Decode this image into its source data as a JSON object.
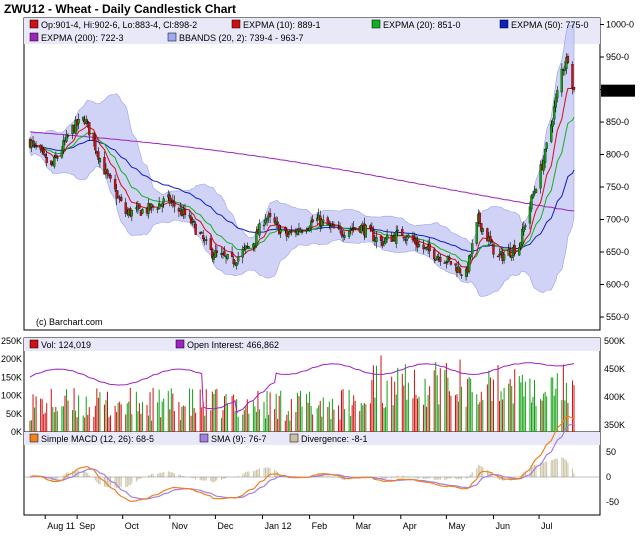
{
  "title": "ZWU12 - Wheat - Daily Candlestick Chart",
  "watermark": "(c) Barchart.com",
  "x_labels": [
    "Aug 11",
    "Sep",
    "Oct",
    "Nov",
    "Dec",
    "Jan 12",
    "Feb",
    "Mar",
    "Apr",
    "May",
    "Jun",
    "Jul"
  ],
  "price_panel": {
    "legend": [
      {
        "label": "Op:901-4, Hi:902-6, Lo:883-4, Cl:898-2",
        "color": "#d01010"
      },
      {
        "label": "EXPMA (10): 889-1",
        "color": "#d01010"
      },
      {
        "label": "EXPMA (20): 851-0",
        "color": "#10b020"
      },
      {
        "label": "EXPMA (50): 775-0",
        "color": "#1020c0"
      },
      {
        "label": "EXPMA (200): 722-3",
        "color": "#a020c0"
      },
      {
        "label": "BBANDS (20, 2): 739-4 - 963-7",
        "color": "#9da8f0"
      }
    ],
    "y_ticks": [
      "1000-0",
      "950-0",
      "900-0",
      "850-0",
      "800-0",
      "750-0",
      "700-0",
      "650-0",
      "600-0",
      "550-0"
    ],
    "last_price_label": "898-2",
    "ylim": [
      530,
      1010
    ]
  },
  "volume_panel": {
    "legend": [
      {
        "label": "Vol: 124,019",
        "color": "#d01010"
      },
      {
        "label": "Open Interest: 466,862",
        "color": "#a020c0"
      }
    ],
    "left_ticks": [
      "250K",
      "200K",
      "150K",
      "100K",
      "50K",
      "0K"
    ],
    "right_ticks": [
      "500K",
      "450K",
      "400K",
      "350K"
    ]
  },
  "macd_panel": {
    "legend": [
      {
        "label": "Simple MACD (12, 26): 68-5",
        "color": "#f08020"
      },
      {
        "label": "SMA (9): 76-7",
        "color": "#a080e0"
      },
      {
        "label": "Divergence: -8-1",
        "color": "#c8c0a0"
      }
    ],
    "y_ticks": [
      "50",
      "0",
      "-50"
    ]
  },
  "colors": {
    "panel_bg": "#e8e8f8",
    "band_fill": "#c8ccf4",
    "band_edge": "#8890e8",
    "up_candle": "#10a010",
    "down_candle": "#d01010",
    "vol_up": "#10a010",
    "vol_down": "#d01010",
    "open_interest": "#a020c0",
    "macd": "#f08020",
    "macd_signal": "#a080e0",
    "divergence": "#c8c0a0",
    "last_price_box": "#000000"
  },
  "chart_data": {
    "type": "candlestick",
    "x_range": [
      "2011-08-01",
      "2012-07-24"
    ],
    "price_keypoints": [
      {
        "date": "2011-08-01",
        "close": 820
      },
      {
        "date": "2011-08-15",
        "close": 780
      },
      {
        "date": "2011-08-29",
        "close": 840
      },
      {
        "date": "2011-09-06",
        "close": 855
      },
      {
        "date": "2011-09-20",
        "close": 770
      },
      {
        "date": "2011-10-03",
        "close": 710
      },
      {
        "date": "2011-10-17",
        "close": 715
      },
      {
        "date": "2011-10-31",
        "close": 730
      },
      {
        "date": "2011-11-14",
        "close": 700
      },
      {
        "date": "2011-11-28",
        "close": 650
      },
      {
        "date": "2011-12-12",
        "close": 635
      },
      {
        "date": "2011-12-26",
        "close": 665
      },
      {
        "date": "2012-01-03",
        "close": 705
      },
      {
        "date": "2012-01-17",
        "close": 675
      },
      {
        "date": "2012-02-06",
        "close": 700
      },
      {
        "date": "2012-02-20",
        "close": 680
      },
      {
        "date": "2012-03-05",
        "close": 690
      },
      {
        "date": "2012-03-19",
        "close": 665
      },
      {
        "date": "2012-04-02",
        "close": 680
      },
      {
        "date": "2012-04-16",
        "close": 655
      },
      {
        "date": "2012-04-30",
        "close": 640
      },
      {
        "date": "2012-05-14",
        "close": 615
      },
      {
        "date": "2012-05-22",
        "close": 700
      },
      {
        "date": "2012-06-04",
        "close": 640
      },
      {
        "date": "2012-06-18",
        "close": 660
      },
      {
        "date": "2012-06-26",
        "close": 730
      },
      {
        "date": "2012-07-05",
        "close": 800
      },
      {
        "date": "2012-07-16",
        "close": 930
      },
      {
        "date": "2012-07-20",
        "close": 950
      },
      {
        "date": "2012-07-24",
        "close": 898
      }
    ],
    "expma_10_last": 889.1,
    "expma_20_last": 851.0,
    "expma_50_last": 775.0,
    "expma_200_last": 722.3,
    "bbands_last": [
      739.4,
      963.7
    ],
    "volume_last": 124019,
    "open_interest_last": 466862,
    "macd_last": 68.5,
    "macd_signal_last": 76.7,
    "divergence_last": -8.1
  }
}
